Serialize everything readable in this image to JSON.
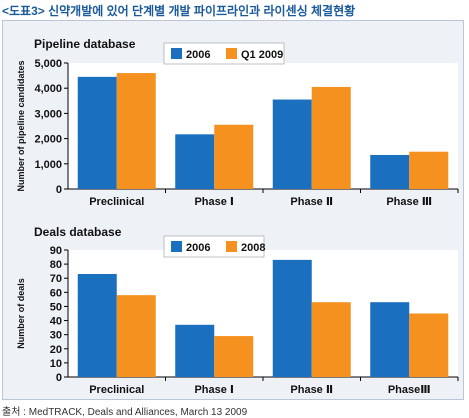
{
  "page": {
    "title": "<도표3> 신약개발에 있어 단계별 개발 파이프라인과 라이센싱 체결현황",
    "source": "출처 : MedTRACK, Deals and Alliances, March 13 2009"
  },
  "colors": {
    "series_a": "#1b6fbf",
    "series_b": "#f5921f",
    "panel_bg": "#eef2f7",
    "plot_bg": "#ffffff"
  },
  "chart_data": [
    {
      "type": "bar",
      "title": "Pipeline database",
      "ylabel": "Number of pipeline candidates",
      "ylim": [
        0,
        5000
      ],
      "yticks": [
        "0",
        "1,000",
        "2,000",
        "3,000",
        "4,000",
        "5,000"
      ],
      "ytick_values": [
        0,
        1000,
        2000,
        3000,
        4000,
        5000
      ],
      "categories": [
        "Preclinical",
        "Phase Ⅰ",
        "Phase Ⅱ",
        "Phase Ⅲ"
      ],
      "series": [
        {
          "name": "2006",
          "values": [
            4450,
            2170,
            3550,
            1350
          ]
        },
        {
          "name": "Q1 2009",
          "values": [
            4600,
            2550,
            4050,
            1480
          ]
        }
      ],
      "legend": "top-right",
      "grid": false
    },
    {
      "type": "bar",
      "title": "Deals database",
      "ylabel": "Number of deals",
      "ylim": [
        0,
        90
      ],
      "yticks": [
        "0",
        "10",
        "20",
        "30",
        "40",
        "50",
        "60",
        "70",
        "80",
        "90"
      ],
      "ytick_values": [
        0,
        10,
        20,
        30,
        40,
        50,
        60,
        70,
        80,
        90
      ],
      "categories": [
        "Preclinical",
        "Phase Ⅰ",
        "Phase Ⅱ",
        "PhaseⅢ"
      ],
      "series": [
        {
          "name": "2006",
          "values": [
            73,
            37,
            83,
            53
          ]
        },
        {
          "name": "2008",
          "values": [
            58,
            29,
            53,
            45
          ]
        }
      ],
      "legend": "top-right",
      "grid": false
    }
  ]
}
